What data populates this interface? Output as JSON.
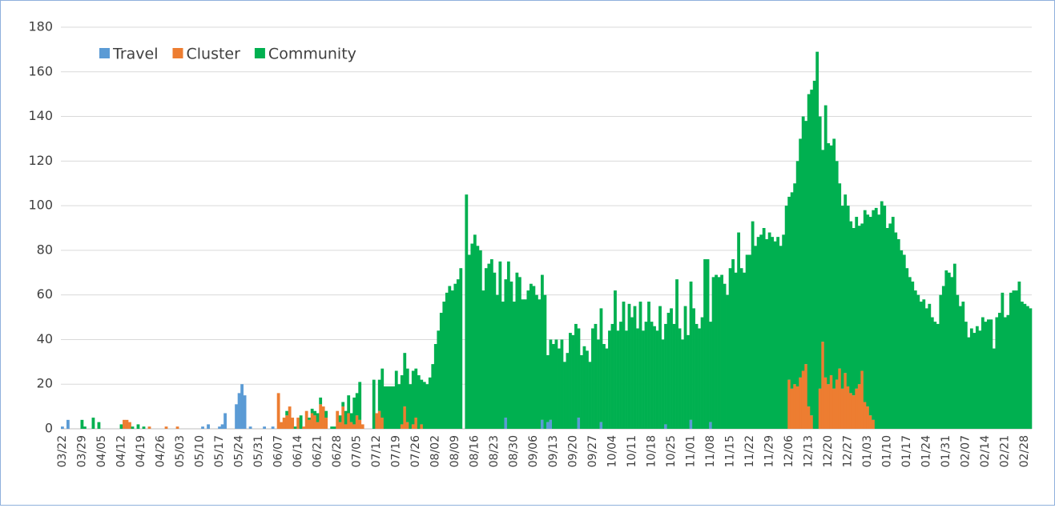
{
  "chart_data": {
    "type": "stacked_bar",
    "categories": [
      "03/22",
      null,
      null,
      null,
      null,
      null,
      null,
      "03/29",
      null,
      null,
      null,
      null,
      null,
      null,
      "04/05",
      null,
      null,
      null,
      null,
      null,
      null,
      "04/12",
      null,
      null,
      null,
      null,
      null,
      null,
      "04/19",
      null,
      null,
      null,
      null,
      null,
      null,
      "04/26",
      null,
      null,
      null,
      null,
      null,
      null,
      "05/03",
      null,
      null,
      null,
      null,
      null,
      null,
      "05/10",
      null,
      null,
      null,
      null,
      null,
      null,
      "05/17",
      null,
      null,
      null,
      null,
      null,
      null,
      "05/24",
      null,
      null,
      null,
      null,
      null,
      null,
      "05/31",
      null,
      null,
      null,
      null,
      null,
      null,
      "06/07",
      null,
      null,
      null,
      null,
      null,
      null,
      "06/14",
      null,
      null,
      null,
      null,
      null,
      null,
      "06/21",
      null,
      null,
      null,
      null,
      null,
      null,
      "06/28",
      null,
      null,
      null,
      null,
      null,
      null,
      "07/05",
      null,
      null,
      null,
      null,
      null,
      null,
      "07/12",
      null,
      null,
      null,
      null,
      null,
      null,
      "07/19",
      null,
      null,
      null,
      null,
      null,
      null,
      "07/26",
      null,
      null,
      null,
      null,
      null,
      null,
      "08/02",
      null,
      null,
      null,
      null,
      null,
      null,
      "08/09",
      null,
      null,
      null,
      null,
      null,
      null,
      "08/16",
      null,
      null,
      null,
      null,
      null,
      null,
      "08/23",
      null,
      null,
      null,
      null,
      null,
      null,
      "08/30",
      null,
      null,
      null,
      null,
      null,
      null,
      "09/06",
      null,
      null,
      null,
      null,
      null,
      null,
      "09/13",
      null,
      null,
      null,
      null,
      null,
      null,
      "09/20",
      null,
      null,
      null,
      null,
      null,
      null,
      "09/27",
      null,
      null,
      null,
      null,
      null,
      null,
      "10/04",
      null,
      null,
      null,
      null,
      null,
      null,
      "10/11",
      null,
      null,
      null,
      null,
      null,
      null,
      "10/18",
      null,
      null,
      null,
      null,
      null,
      null,
      "10/25",
      null,
      null,
      null,
      null,
      null,
      null,
      "11/01",
      null,
      null,
      null,
      null,
      null,
      null,
      "11/08",
      null,
      null,
      null,
      null,
      null,
      null,
      "11/15",
      null,
      null,
      null,
      null,
      null,
      null,
      "11/22",
      null,
      null,
      null,
      null,
      null,
      null,
      "11/29",
      null,
      null,
      null,
      null,
      null,
      null,
      "12/06",
      null,
      null,
      null,
      null,
      null,
      null,
      "12/13",
      null,
      null,
      null,
      null,
      null,
      null,
      "12/20",
      null,
      null,
      null,
      null,
      null,
      null,
      "12/27",
      null,
      null,
      null,
      null,
      null,
      null,
      "01/03",
      null,
      null,
      null,
      null,
      null,
      null,
      "01/10",
      null,
      null,
      null,
      null,
      null,
      null,
      "01/17",
      null,
      null,
      null,
      null,
      null,
      null,
      "01/24",
      null,
      null,
      null,
      null,
      null,
      null,
      "01/31",
      null,
      null,
      null,
      null,
      null,
      null,
      "02/07",
      null,
      null,
      null,
      null,
      null,
      null,
      "02/14",
      null,
      null,
      null,
      null,
      null,
      null,
      "02/21",
      null,
      null,
      null,
      null,
      null,
      null,
      "02/28",
      null,
      null
    ],
    "series": [
      {
        "name": "Travel",
        "color": "#5b9bd5",
        "values": [
          1,
          0,
          4,
          0,
          0,
          0,
          0,
          0,
          0,
          0,
          0,
          0,
          0,
          0,
          0,
          0,
          0,
          0,
          0,
          0,
          0,
          0,
          0,
          0,
          0,
          0,
          0,
          0,
          0,
          0,
          0,
          0,
          0,
          0,
          0,
          0,
          0,
          0,
          0,
          0,
          0,
          0,
          0,
          0,
          0,
          0,
          0,
          0,
          0,
          0,
          1,
          0,
          2,
          0,
          0,
          0,
          1,
          2,
          7,
          0,
          0,
          0,
          11,
          16,
          20,
          15,
          0,
          1,
          0,
          0,
          0,
          0,
          1,
          0,
          0,
          1,
          0,
          0,
          0,
          0,
          0,
          0,
          0,
          0,
          0,
          0,
          0,
          0,
          0,
          0,
          0,
          0,
          0,
          0,
          0,
          0,
          0,
          0,
          0,
          0,
          0,
          0,
          0,
          0,
          0,
          0,
          0,
          0,
          0,
          0,
          0,
          0,
          0,
          0,
          0,
          0,
          0,
          0,
          0,
          0,
          0,
          0,
          0,
          0,
          0,
          0,
          0,
          0,
          0,
          0,
          0,
          0,
          0,
          0,
          0,
          0,
          0,
          0,
          0,
          0,
          0,
          0,
          0,
          0,
          0,
          0,
          0,
          0,
          0,
          0,
          0,
          0,
          0,
          0,
          0,
          0,
          0,
          0,
          5,
          0,
          0,
          0,
          0,
          0,
          0,
          0,
          0,
          0,
          0,
          0,
          0,
          4,
          0,
          3,
          4,
          0,
          0,
          0,
          0,
          0,
          0,
          0,
          0,
          0,
          5,
          0,
          0,
          0,
          0,
          0,
          0,
          0,
          3,
          0,
          0,
          0,
          0,
          0,
          0,
          0,
          0,
          0,
          0,
          0,
          0,
          0,
          0,
          0,
          0,
          0,
          0,
          0,
          0,
          0,
          0,
          2,
          0,
          0,
          0,
          0,
          0,
          0,
          0,
          0,
          4,
          0,
          0,
          0,
          0,
          0,
          0,
          3,
          0,
          0,
          0,
          0,
          0,
          0,
          0,
          0,
          0,
          0,
          0,
          0,
          0,
          0,
          0,
          0,
          0,
          0,
          0,
          0,
          0,
          0,
          0,
          0,
          0,
          0,
          0,
          0,
          0,
          0,
          0,
          0,
          0,
          0,
          0,
          0,
          0,
          0,
          0,
          0,
          0,
          0,
          0,
          0,
          0,
          0,
          0,
          0,
          0,
          0,
          0,
          0,
          0,
          0,
          0,
          0,
          0,
          0,
          0,
          0,
          0,
          0,
          0,
          0,
          0,
          0,
          0,
          0,
          0,
          0,
          0,
          0,
          0,
          0,
          0,
          0,
          0,
          0,
          0,
          0,
          0,
          0,
          0,
          0,
          0,
          0,
          0,
          0,
          0,
          0,
          0,
          0,
          0,
          0,
          0,
          0,
          0,
          0,
          0,
          0,
          0,
          0,
          0,
          0,
          0,
          0,
          0,
          0,
          0,
          0,
          0,
          0,
          0,
          0
        ]
      },
      {
        "name": "Cluster",
        "color": "#ed7d31",
        "values": [
          0,
          0,
          0,
          0,
          0,
          0,
          0,
          0,
          0,
          0,
          0,
          0,
          0,
          0,
          0,
          0,
          0,
          0,
          0,
          0,
          0,
          0,
          4,
          4,
          3,
          0,
          0,
          0,
          0,
          0,
          0,
          1,
          0,
          0,
          0,
          0,
          0,
          1,
          0,
          0,
          0,
          1,
          0,
          0,
          0,
          0,
          0,
          0,
          0,
          0,
          0,
          0,
          0,
          0,
          0,
          0,
          0,
          0,
          0,
          0,
          0,
          0,
          0,
          0,
          0,
          0,
          0,
          0,
          0,
          0,
          0,
          0,
          0,
          0,
          0,
          0,
          0,
          16,
          3,
          5,
          6,
          10,
          5,
          0,
          5,
          0,
          1,
          8,
          4,
          7,
          6,
          3,
          11,
          10,
          5,
          0,
          0,
          0,
          8,
          3,
          10,
          2,
          7,
          3,
          2,
          6,
          4,
          2,
          0,
          0,
          0,
          0,
          7,
          8,
          5,
          0,
          0,
          0,
          0,
          0,
          0,
          2,
          10,
          3,
          0,
          2,
          5,
          0,
          2,
          0,
          0,
          0,
          0,
          0,
          0,
          0,
          0,
          0,
          0,
          0,
          0,
          0,
          0,
          0,
          0,
          0,
          0,
          0,
          0,
          0,
          0,
          0,
          0,
          0,
          0,
          0,
          0,
          0,
          0,
          0,
          0,
          0,
          0,
          0,
          0,
          0,
          0,
          0,
          0,
          0,
          0,
          0,
          0,
          0,
          0,
          0,
          0,
          0,
          0,
          0,
          0,
          0,
          0,
          0,
          0,
          0,
          0,
          0,
          0,
          0,
          0,
          0,
          0,
          0,
          0,
          0,
          0,
          0,
          0,
          0,
          0,
          0,
          0,
          0,
          0,
          0,
          0,
          0,
          0,
          0,
          0,
          0,
          0,
          0,
          0,
          0,
          0,
          0,
          0,
          0,
          0,
          0,
          0,
          0,
          0,
          0,
          0,
          0,
          0,
          0,
          0,
          0,
          0,
          0,
          0,
          0,
          0,
          0,
          0,
          0,
          0,
          0,
          0,
          0,
          0,
          0,
          0,
          0,
          0,
          0,
          0,
          0,
          0,
          0,
          0,
          0,
          0,
          0,
          0,
          22,
          18,
          20,
          19,
          23,
          26,
          29,
          10,
          6,
          0,
          0,
          18,
          39,
          23,
          20,
          24,
          18,
          22,
          27,
          18,
          25,
          19,
          16,
          15,
          18,
          20,
          26,
          12,
          10,
          6,
          4,
          0,
          0,
          0,
          0,
          0,
          0,
          0,
          0,
          0,
          0,
          0,
          0,
          0,
          0,
          0,
          0,
          0,
          0,
          0,
          0,
          0,
          0,
          0,
          0,
          0,
          0,
          0,
          0,
          0,
          0,
          0,
          0,
          0,
          0,
          0,
          0,
          0,
          0,
          0,
          0,
          0,
          0,
          0,
          0,
          0,
          0,
          0,
          0,
          0,
          0,
          0,
          0,
          0,
          0,
          0,
          0
        ]
      },
      {
        "name": "Community",
        "color": "#00b050",
        "values": [
          0,
          0,
          0,
          0,
          0,
          0,
          0,
          4,
          1,
          0,
          0,
          5,
          0,
          3,
          0,
          0,
          0,
          0,
          0,
          0,
          0,
          2,
          0,
          0,
          0,
          1,
          0,
          2,
          0,
          1,
          0,
          0,
          0,
          0,
          0,
          0,
          0,
          0,
          0,
          0,
          0,
          0,
          0,
          0,
          0,
          0,
          0,
          0,
          0,
          0,
          0,
          0,
          0,
          0,
          0,
          0,
          0,
          0,
          0,
          0,
          0,
          0,
          0,
          0,
          0,
          0,
          0,
          0,
          0,
          0,
          0,
          0,
          0,
          0,
          0,
          0,
          0,
          0,
          0,
          0,
          2,
          0,
          0,
          1,
          0,
          6,
          0,
          0,
          1,
          2,
          2,
          4,
          3,
          0,
          3,
          0,
          1,
          1,
          0,
          3,
          2,
          6,
          8,
          4,
          12,
          10,
          17,
          0,
          0,
          0,
          0,
          22,
          0,
          14,
          22,
          19,
          19,
          19,
          19,
          26,
          20,
          22,
          24,
          24,
          20,
          24,
          22,
          24,
          20,
          21,
          20,
          23,
          29,
          38,
          44,
          52,
          57,
          61,
          64,
          62,
          65,
          67,
          72,
          0,
          105,
          78,
          83,
          87,
          82,
          80,
          62,
          72,
          74,
          76,
          70,
          60,
          75,
          57,
          62,
          75,
          66,
          57,
          70,
          68,
          58,
          58,
          62,
          65,
          64,
          60,
          58,
          65,
          60,
          30,
          36,
          38,
          40,
          36,
          40,
          30,
          34,
          43,
          42,
          47,
          40,
          33,
          37,
          35,
          30,
          45,
          47,
          40,
          51,
          38,
          36,
          44,
          47,
          62,
          44,
          48,
          57,
          44,
          56,
          50,
          55,
          45,
          57,
          44,
          48,
          57,
          48,
          46,
          44,
          55,
          40,
          45,
          52,
          54,
          47,
          67,
          45,
          40,
          55,
          42,
          62,
          54,
          47,
          45,
          50,
          76,
          76,
          45,
          68,
          69,
          68,
          69,
          65,
          60,
          72,
          76,
          70,
          88,
          72,
          70,
          78,
          78,
          93,
          82,
          86,
          87,
          90,
          85,
          88,
          86,
          84,
          86,
          82,
          87,
          100,
          82,
          88,
          90,
          101,
          107,
          114,
          109,
          140,
          146,
          156,
          169,
          122,
          86,
          122,
          108,
          103,
          112,
          98,
          83,
          82,
          80,
          81,
          77,
          75,
          77,
          71,
          66,
          86,
          86,
          89,
          94,
          99,
          96,
          102,
          100,
          90,
          92,
          95,
          88,
          85,
          80,
          78,
          72,
          68,
          66,
          62,
          60,
          57,
          58,
          54,
          56,
          50,
          48,
          47,
          60,
          64,
          71,
          70,
          68,
          74,
          60,
          55,
          57,
          48,
          41,
          45,
          43,
          46,
          44,
          50,
          48,
          49,
          49,
          36,
          50,
          52,
          61,
          50,
          51,
          61,
          62,
          62,
          66,
          57,
          56,
          55,
          54
        ]
      }
    ],
    "ylim": [
      0,
      180
    ],
    "yticks": [
      0,
      20,
      40,
      60,
      80,
      100,
      120,
      140,
      160,
      180
    ],
    "grid": true,
    "legend": "top-left"
  }
}
